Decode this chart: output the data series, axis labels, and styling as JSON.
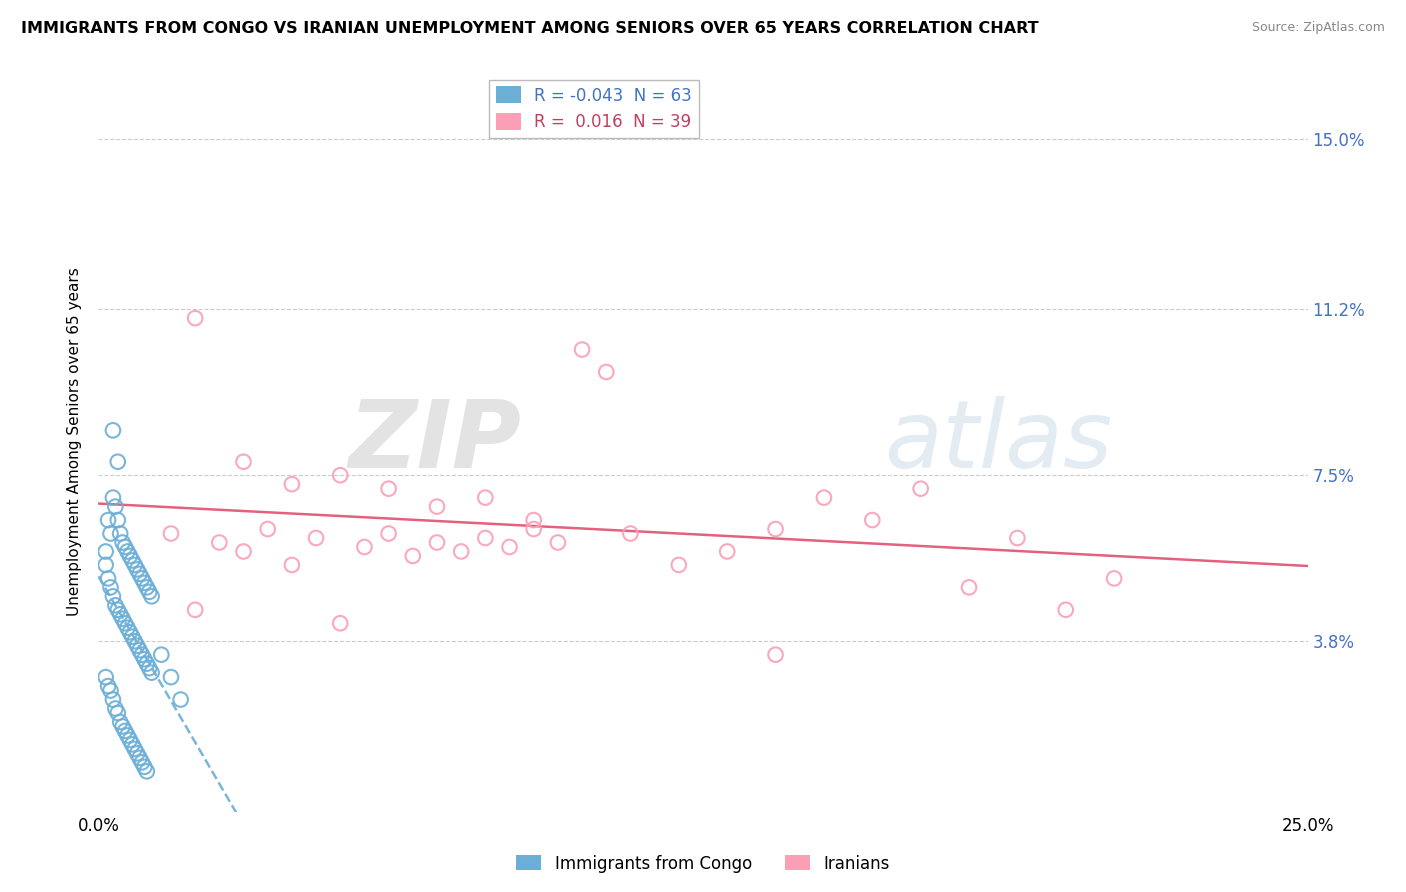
{
  "title": "IMMIGRANTS FROM CONGO VS IRANIAN UNEMPLOYMENT AMONG SENIORS OVER 65 YEARS CORRELATION CHART",
  "source": "Source: ZipAtlas.com",
  "ylabel": "Unemployment Among Seniors over 65 years",
  "ytick_labels": [
    "3.8%",
    "7.5%",
    "11.2%",
    "15.0%"
  ],
  "ytick_vals": [
    3.8,
    7.5,
    11.2,
    15.0
  ],
  "xlim": [
    0.0,
    25.0
  ],
  "ylim": [
    0.0,
    16.5
  ],
  "congo_color": "#6baed6",
  "iran_color": "#fa9fb5",
  "iran_line_color": "#e05070",
  "congo_R": -0.043,
  "iran_R": 0.016,
  "congo_N": 63,
  "iran_N": 39,
  "congo_x": [
    0.15,
    0.2,
    0.25,
    0.3,
    0.35,
    0.4,
    0.45,
    0.5,
    0.55,
    0.6,
    0.65,
    0.7,
    0.75,
    0.8,
    0.85,
    0.9,
    0.95,
    1.0,
    1.05,
    1.1,
    0.15,
    0.2,
    0.25,
    0.3,
    0.35,
    0.4,
    0.45,
    0.5,
    0.55,
    0.6,
    0.65,
    0.7,
    0.75,
    0.8,
    0.85,
    0.9,
    0.95,
    1.0,
    1.05,
    1.1,
    0.15,
    0.2,
    0.25,
    0.3,
    0.35,
    0.4,
    0.45,
    0.5,
    0.55,
    0.6,
    0.65,
    0.7,
    0.75,
    0.8,
    0.85,
    0.9,
    0.95,
    1.0,
    1.3,
    1.5,
    1.7,
    0.3,
    0.4
  ],
  "congo_y": [
    5.8,
    6.5,
    6.2,
    7.0,
    6.8,
    6.5,
    6.2,
    6.0,
    5.9,
    5.8,
    5.7,
    5.6,
    5.5,
    5.4,
    5.3,
    5.2,
    5.1,
    5.0,
    4.9,
    4.8,
    5.5,
    5.2,
    5.0,
    4.8,
    4.6,
    4.5,
    4.4,
    4.3,
    4.2,
    4.1,
    4.0,
    3.9,
    3.8,
    3.7,
    3.6,
    3.5,
    3.4,
    3.3,
    3.2,
    3.1,
    3.0,
    2.8,
    2.7,
    2.5,
    2.3,
    2.2,
    2.0,
    1.9,
    1.8,
    1.7,
    1.6,
    1.5,
    1.4,
    1.3,
    1.2,
    1.1,
    1.0,
    0.9,
    3.5,
    3.0,
    2.5,
    8.5,
    7.8
  ],
  "iran_x": [
    1.5,
    2.0,
    2.5,
    3.0,
    3.5,
    4.0,
    4.5,
    5.0,
    5.5,
    6.0,
    6.5,
    7.0,
    7.5,
    8.0,
    8.5,
    9.0,
    9.5,
    10.0,
    10.5,
    11.0,
    12.0,
    13.0,
    14.0,
    15.0,
    16.0,
    17.0,
    18.0,
    19.0,
    20.0,
    21.0,
    2.0,
    3.0,
    4.0,
    5.0,
    6.0,
    7.0,
    8.0,
    9.0,
    14.0
  ],
  "iran_y": [
    6.2,
    4.5,
    6.0,
    5.8,
    6.3,
    5.5,
    6.1,
    4.2,
    5.9,
    6.2,
    5.7,
    6.0,
    5.8,
    6.1,
    5.9,
    6.3,
    6.0,
    10.3,
    9.8,
    6.2,
    5.5,
    5.8,
    6.3,
    7.0,
    6.5,
    7.2,
    5.0,
    6.1,
    4.5,
    5.2,
    11.0,
    7.8,
    7.3,
    7.5,
    7.2,
    6.8,
    7.0,
    6.5,
    3.5
  ]
}
